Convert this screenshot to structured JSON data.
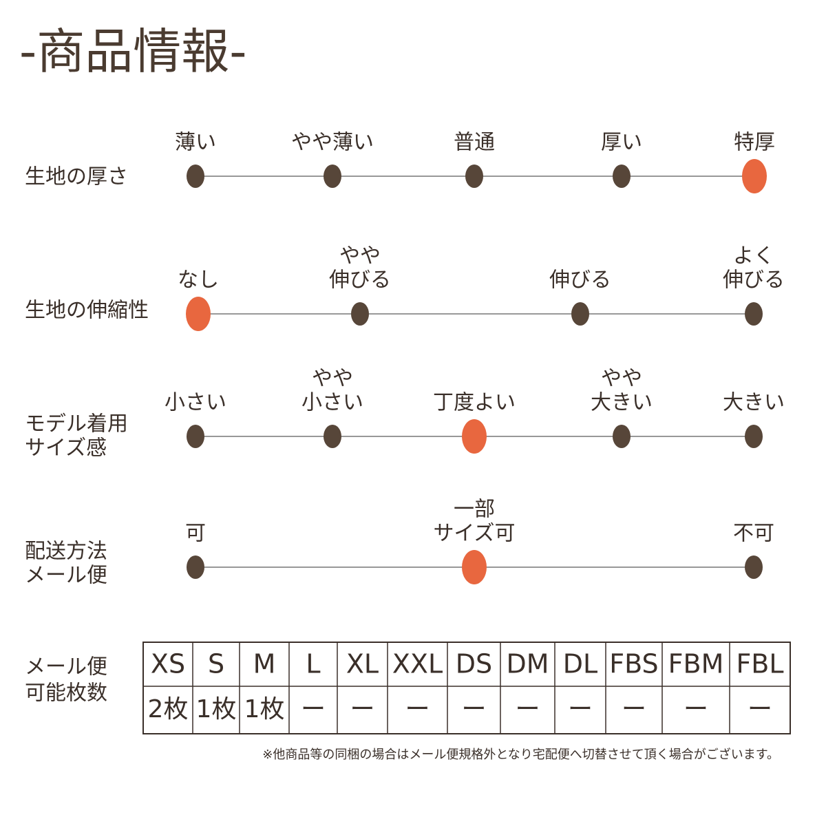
{
  "title": "-商品情報-",
  "scales": [
    {
      "label": [
        "生地の厚さ"
      ],
      "options": [
        [
          "薄い"
        ],
        [
          "やや薄い"
        ],
        [
          "普通"
        ],
        [
          "厚い"
        ],
        [
          "特厚"
        ]
      ],
      "selected": 4
    },
    {
      "label": [
        "生地の伸縮性"
      ],
      "options": [
        [
          "なし"
        ],
        [
          "やや",
          "伸びる"
        ],
        [
          "伸びる"
        ],
        [
          "よく",
          "伸びる"
        ]
      ],
      "selected": 0
    },
    {
      "label": [
        "モデル着用",
        "サイズ感"
      ],
      "options": [
        [
          "小さい"
        ],
        [
          "やや",
          "小さい"
        ],
        [
          "丁度よい"
        ],
        [
          "やや",
          "大きい"
        ],
        [
          "大きい"
        ]
      ],
      "selected": 2
    },
    {
      "label": [
        "配送方法",
        "メール便"
      ],
      "options": [
        [
          "可"
        ],
        [
          "一部",
          "サイズ可"
        ],
        [
          "不可"
        ]
      ],
      "selected": 1
    }
  ],
  "table": {
    "label": [
      "メール便",
      "可能枚数"
    ],
    "header": [
      "XS",
      "S",
      "M",
      "L",
      "XL",
      "XXL",
      "DS",
      "DM",
      "DL",
      "FBS",
      "FBM",
      "FBL"
    ],
    "row": [
      "2枚",
      "1枚",
      "1枚",
      "ー",
      "ー",
      "ー",
      "ー",
      "ー",
      "ー",
      "ー",
      "ー",
      "ー"
    ]
  },
  "note": "※他商品等の同梱の場合はメール便規格外となり宅配便へ切替させて頂く場合がございます。"
}
